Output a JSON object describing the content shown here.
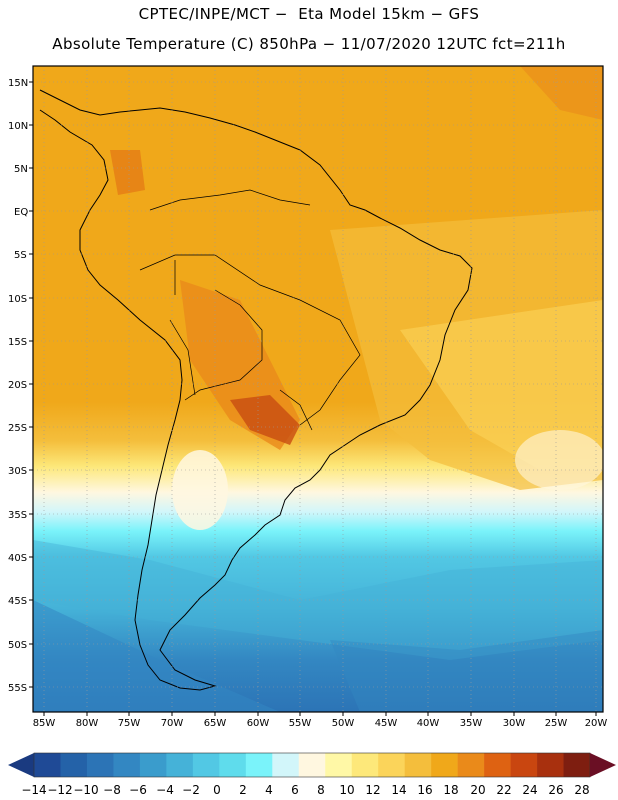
{
  "header": {
    "line1": "CPTEC/INPE/MCT −  Eta Model 15km − GFS",
    "line2": "Absolute Temperature (C) 850hPa − 11/07/2020 12UTC fct=211h"
  },
  "axes": {
    "lat_labels": [
      "15N",
      "10N",
      "5N",
      "EQ",
      "5S",
      "10S",
      "15S",
      "20S",
      "25S",
      "30S",
      "35S",
      "40S",
      "45S",
      "50S",
      "55S"
    ],
    "lon_labels": [
      "85W",
      "80W",
      "75W",
      "70W",
      "65W",
      "60W",
      "55W",
      "50W",
      "45W",
      "40W",
      "35W",
      "30W",
      "25W",
      "20W"
    ]
  },
  "colorbar": {
    "labels": [
      "−14",
      "−12",
      "−10",
      "−8",
      "−6",
      "−4",
      "−2",
      "0",
      "2",
      "4",
      "6",
      "8",
      "10",
      "12",
      "14",
      "16",
      "18",
      "20",
      "22",
      "24",
      "26",
      "28"
    ],
    "colors": [
      "#1f4a96",
      "#2462a8",
      "#2c74b6",
      "#3387c2",
      "#3a9ccc",
      "#45b2d8",
      "#52c8e4",
      "#5fdcec",
      "#7af3fa",
      "#d2f6fa",
      "#fff7e0",
      "#fff8a6",
      "#fde87a",
      "#fbd45a",
      "#f4be3c",
      "#f0a81a",
      "#ea8a1a",
      "#de6212",
      "#c94610",
      "#a8300e",
      "#7e1e10"
    ],
    "under_color": "#1a3a80",
    "over_color": "#6a0f24"
  },
  "palette": {
    "warm_deep": "#c84c12",
    "warm_orange": "#e79a1c",
    "warm_gold": "#f1b12c",
    "cool_light": "#52c8e4",
    "cool_mid": "#3a9ccc",
    "cool_deep": "#2c74b6"
  }
}
